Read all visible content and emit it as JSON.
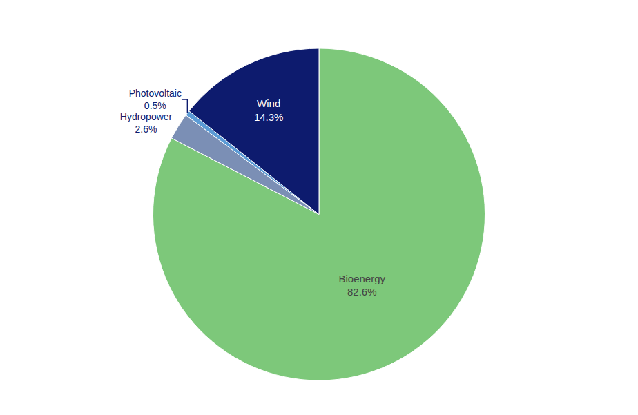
{
  "chart_data": {
    "type": "pie",
    "categories": [
      "Bioenergy",
      "Hydropower",
      "Photovoltaic",
      "Wind"
    ],
    "values": [
      82.6,
      2.6,
      0.5,
      14.3
    ],
    "value_labels": [
      "82.6%",
      "2.6%",
      "0.5%",
      "14.3%"
    ],
    "colors": [
      "#7DC87A",
      "#7B8FB5",
      "#5B9BD5",
      "#0D1B6E"
    ],
    "data_labels": true
  }
}
